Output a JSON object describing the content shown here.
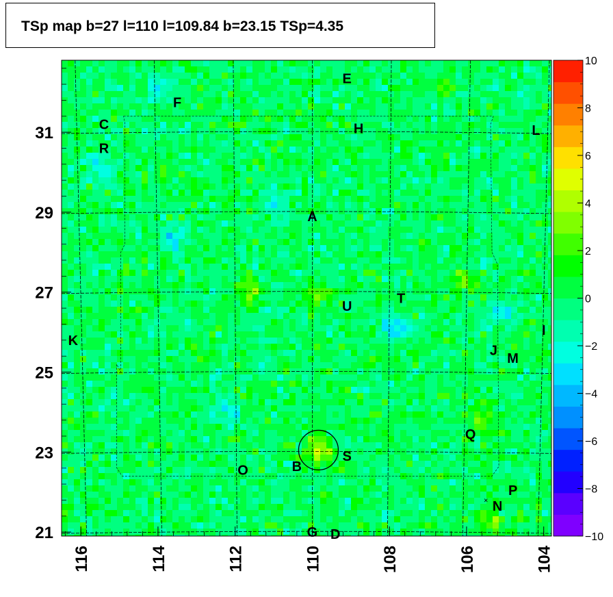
{
  "title": "TSp map b=27 l=110 l=109.84 b=23.15 TSp=4.35",
  "chart_data": {
    "type": "heatmap",
    "title": "TSp map b=27 l=110 l=109.84 b=23.15 TSp=4.35",
    "xlabel": "",
    "ylabel": "",
    "x_axis": {
      "reversed": true,
      "range": [
        116.5,
        103.8
      ],
      "ticks": [
        "116",
        "114",
        "112",
        "110",
        "108",
        "106",
        "104"
      ]
    },
    "y_axis": {
      "range": [
        20.9,
        32.8
      ],
      "ticks": [
        "21",
        "23",
        "25",
        "27",
        "29",
        "31"
      ]
    },
    "colorbar": {
      "range": [
        -10,
        10
      ],
      "ticks": [
        "10",
        "8",
        "6",
        "4",
        "2",
        "0",
        "−2",
        "−4",
        "−6",
        "−8",
        "−10"
      ]
    },
    "palette": [
      "#7f00ff",
      "#5a00ff",
      "#2200ff",
      "#0020ff",
      "#0055ff",
      "#0090ff",
      "#00b8ff",
      "#00e0ff",
      "#00ffe0",
      "#00ffb0",
      "#00ff80",
      "#00ff40",
      "#00ff00",
      "#40ff00",
      "#80ff00",
      "#b0ff00",
      "#e0ff00",
      "#ffe000",
      "#ffb000",
      "#ff8000",
      "#ff5000",
      "#ff2000"
    ],
    "background_value_range": [
      -1,
      1
    ],
    "hotspots": [
      {
        "l": 109.84,
        "b": 23.05,
        "value": 4.5
      },
      {
        "l": 105.4,
        "b": 21.3,
        "value": 3.5
      },
      {
        "l": 105.6,
        "b": 23.8,
        "value": 3.0
      },
      {
        "l": 106.1,
        "b": 27.2,
        "value": 2.5
      },
      {
        "l": 109.8,
        "b": 26.9,
        "value": 2.5
      },
      {
        "l": 106.6,
        "b": 32.2,
        "value": 2.0
      },
      {
        "l": 111.6,
        "b": 27.0,
        "value": 2.0
      },
      {
        "l": 107.8,
        "b": 26.1,
        "value": -4.0
      },
      {
        "l": 114.0,
        "b": 32.1,
        "value": -3.0
      },
      {
        "l": 113.6,
        "b": 28.3,
        "value": -3.0
      },
      {
        "l": 115.5,
        "b": 30.2,
        "value": -2.5
      },
      {
        "l": 111.0,
        "b": 29.2,
        "value": -2.5
      },
      {
        "l": 112.2,
        "b": 24.0,
        "value": -2.0
      },
      {
        "l": 105.1,
        "b": 26.5,
        "value": -2.5
      }
    ],
    "circle": {
      "l": 109.84,
      "b": 23.05,
      "radius_deg": 0.5
    },
    "sources": [
      {
        "label": "E",
        "l": 109.1,
        "b": 32.35
      },
      {
        "label": "F",
        "l": 113.5,
        "b": 31.75
      },
      {
        "label": "C",
        "l": 115.4,
        "b": 31.2
      },
      {
        "label": "H",
        "l": 108.8,
        "b": 31.1
      },
      {
        "label": "L",
        "l": 104.2,
        "b": 31.05
      },
      {
        "label": "R",
        "l": 115.4,
        "b": 30.6
      },
      {
        "label": "A",
        "l": 110.0,
        "b": 28.9
      },
      {
        "label": "T",
        "l": 107.7,
        "b": 26.85
      },
      {
        "label": "U",
        "l": 109.1,
        "b": 26.65
      },
      {
        "label": "I",
        "l": 104.0,
        "b": 26.05
      },
      {
        "label": "K",
        "l": 116.2,
        "b": 25.8
      },
      {
        "label": "J",
        "l": 105.3,
        "b": 25.55
      },
      {
        "label": "M",
        "l": 104.8,
        "b": 25.35
      },
      {
        "label": "Q",
        "l": 105.9,
        "b": 23.45
      },
      {
        "label": "S",
        "l": 109.1,
        "b": 22.9
      },
      {
        "label": "B",
        "l": 110.4,
        "b": 22.65
      },
      {
        "label": "O",
        "l": 111.8,
        "b": 22.55
      },
      {
        "label": "P",
        "l": 104.8,
        "b": 22.05
      },
      {
        "label": "N",
        "l": 105.2,
        "b": 21.65
      },
      {
        "label": "G",
        "l": 110.0,
        "b": 21.0
      },
      {
        "label": "D",
        "l": 109.4,
        "b": 20.95
      }
    ],
    "markers": [
      {
        "symbol": "×",
        "l": 105.5,
        "b": 21.8
      }
    ]
  }
}
